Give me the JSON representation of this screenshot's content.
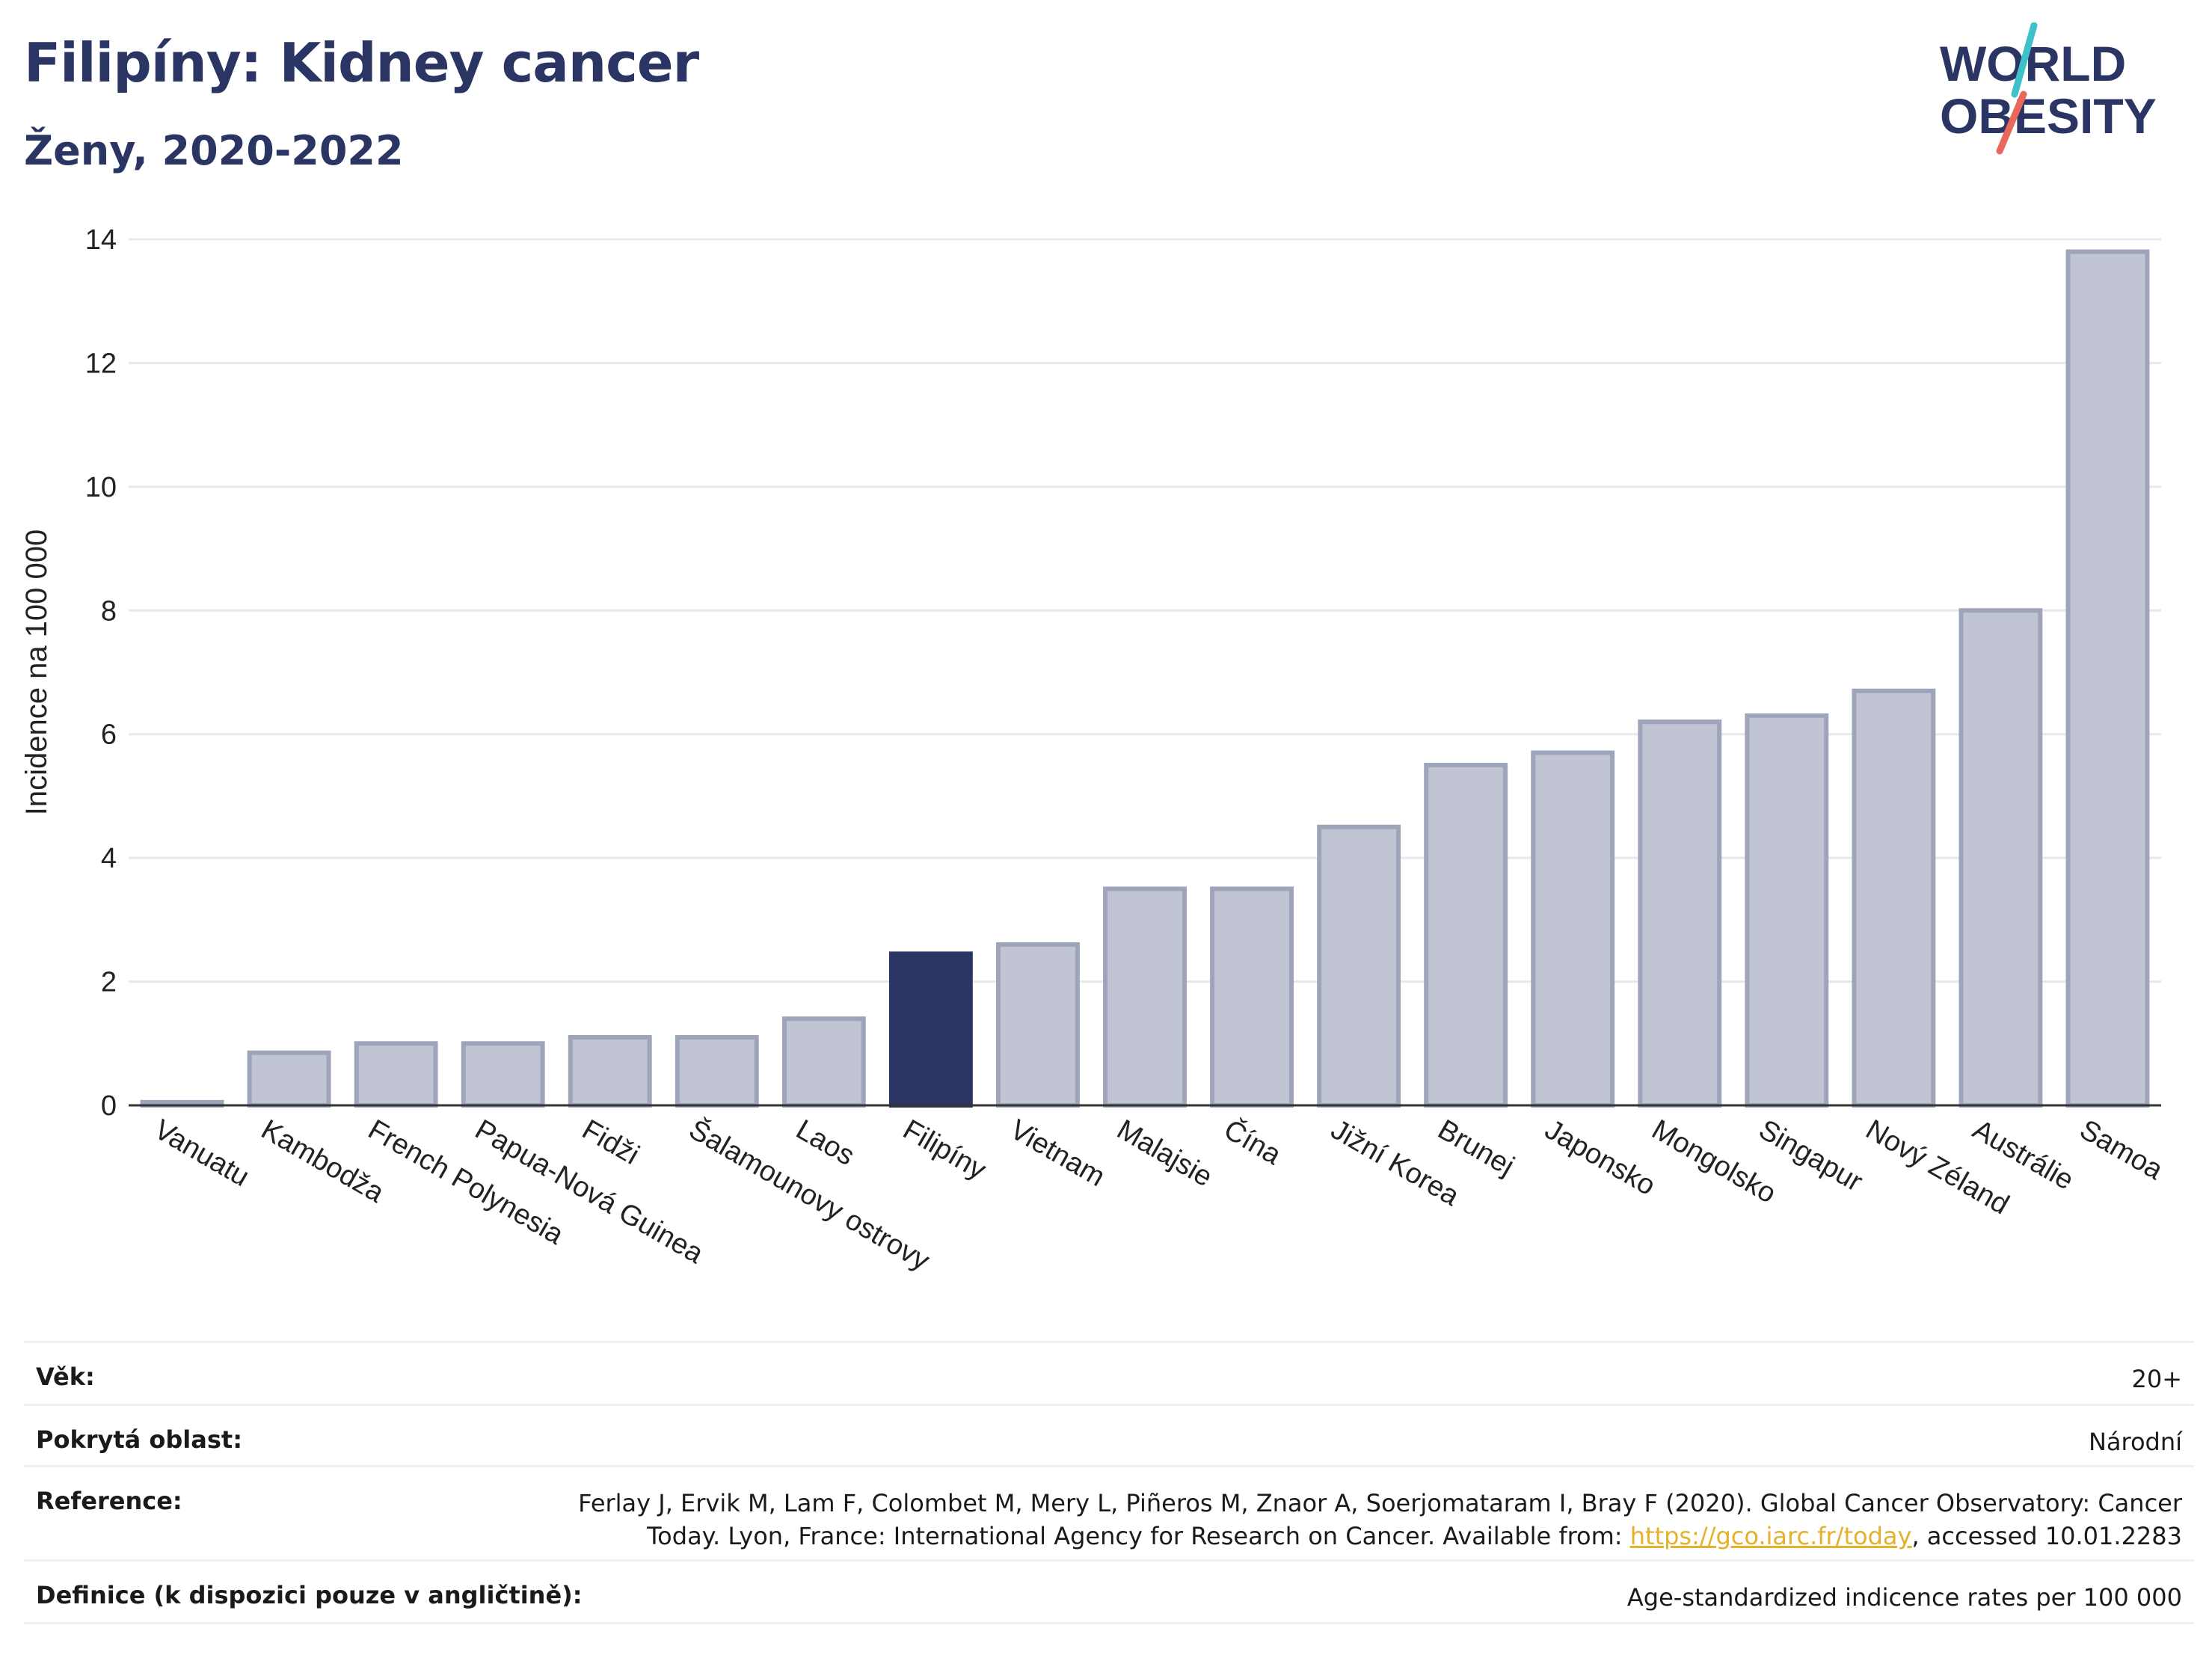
{
  "title": "Filipíny: Kidney cancer",
  "subtitle": "Ženy, 2020-2022",
  "logo": {
    "line1": "WORLD",
    "line2": "OBESITY",
    "colors": [
      "#2b3563",
      "#3fc1c9",
      "#e9685b"
    ]
  },
  "chart_data": {
    "type": "bar",
    "ylabel": "Incidence na 100 000",
    "ylim": [
      0,
      14
    ],
    "yticks": [
      0,
      2,
      4,
      6,
      8,
      10,
      12,
      14
    ],
    "grid": true,
    "categories": [
      "Vanuatu",
      "Kambodža",
      "French Polynesia",
      "Papua-Nová Guinea",
      "Fidži",
      "Šalamounovy ostrovy",
      "Laos",
      "Filipíny",
      "Vietnam",
      "Malajsie",
      "Čína",
      "Jižní Korea",
      "Brunej",
      "Japonsko",
      "Mongolsko",
      "Singapur",
      "Nový Zéland",
      "Austrálie",
      "Samoa"
    ],
    "values": [
      0.05,
      0.85,
      1.0,
      1.0,
      1.1,
      1.1,
      1.4,
      2.45,
      2.6,
      3.5,
      3.5,
      4.5,
      5.5,
      5.7,
      6.2,
      6.3,
      6.7,
      8.0,
      13.8
    ],
    "highlight": "Filipíny",
    "colors": {
      "bar": "#c0c4d3",
      "bar_edge": "#9ea4ba",
      "highlight": "#2b3563",
      "grid": "#e6e8ee",
      "axis": "#333333"
    }
  },
  "meta": [
    {
      "label": "Věk:",
      "value": "20+"
    },
    {
      "label": "Pokrytá oblast:",
      "value": "Národní"
    },
    {
      "label": "Reference:",
      "value_line1": "Ferlay J, Ervik M, Lam F, Colombet M, Mery L, Piñeros M, Znaor A, Soerjomataram I, Bray F (2020). Global Cancer Observatory: Cancer",
      "value_line2_pre": "Today. Lyon, France: International Agency for Research on Cancer. Available from: ",
      "link": "https://gco.iarc.fr/today",
      "value_line2_post": ", accessed 10.01.2283"
    },
    {
      "label": "Definice (k dispozici pouze v angličtině):",
      "value": "Age-standardized indicence rates per 100 000"
    }
  ]
}
